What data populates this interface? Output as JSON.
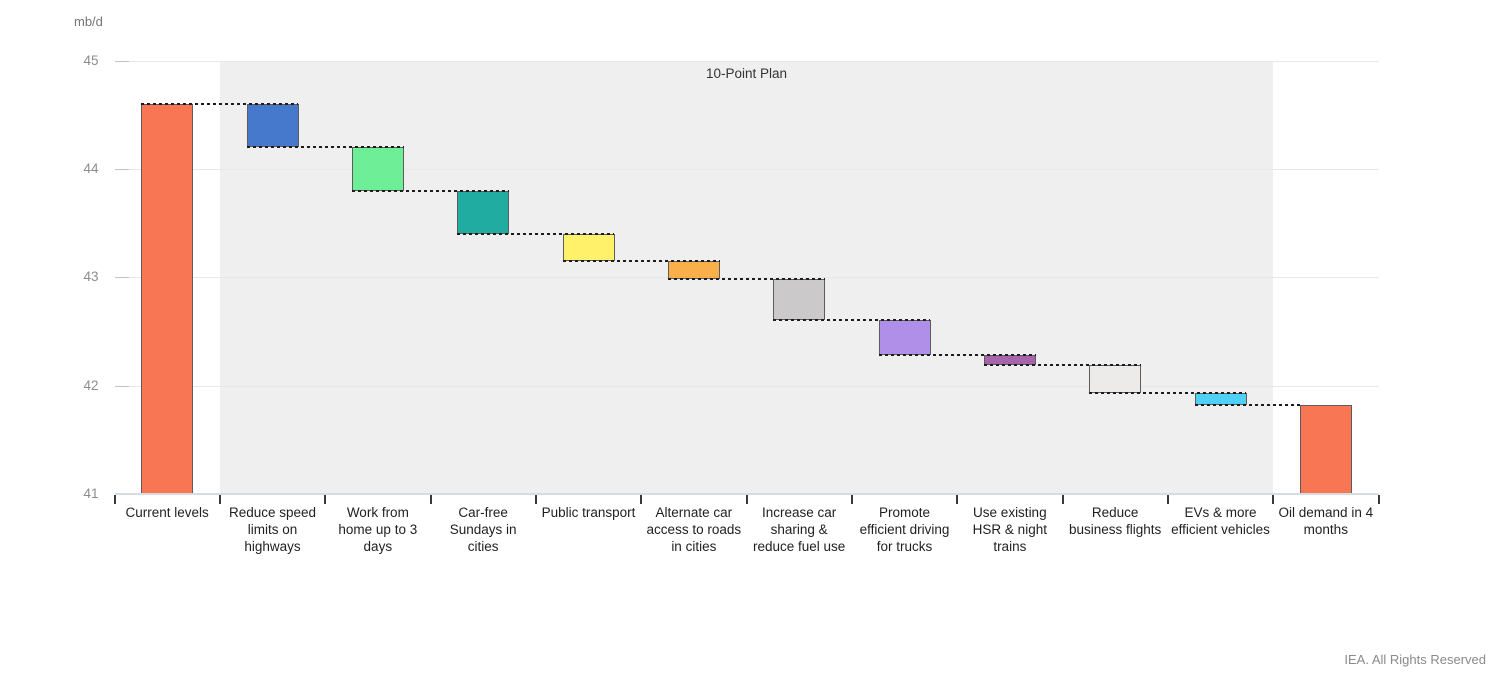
{
  "unit_label": "mb/d",
  "footer": {
    "credit": "IEA. All Rights Reserved"
  },
  "chart_data": {
    "type": "bar",
    "subtype": "waterfall",
    "title": "10-Point Plan",
    "ylabel": "mb/d",
    "ylim": [
      41,
      45
    ],
    "yticks": [
      45,
      44,
      43,
      42,
      41
    ],
    "grid": true,
    "legend": "none",
    "band": {
      "label": "10-Point Plan",
      "from_category_index": 1,
      "to_category_index": 10,
      "color": "#F0EFEF"
    },
    "start": {
      "label": "Current levels",
      "value": 44.6
    },
    "end": {
      "label": "Oil demand in 4 months",
      "value": 41.82
    },
    "total_reduction_mb_d": 2.78,
    "bars": [
      {
        "label": "Current levels",
        "role": "total",
        "from": 41,
        "to": 44.6,
        "delta": null,
        "color": "#F97655"
      },
      {
        "label": "Reduce speed limits on highways",
        "role": "decrease",
        "from": 44.6,
        "to": 44.2,
        "delta": -0.4,
        "color": "#4679CC"
      },
      {
        "label": "Work from home up to 3 days",
        "role": "decrease",
        "from": 44.2,
        "to": 43.8,
        "delta": -0.4,
        "color": "#6EEF97"
      },
      {
        "label": "Car-free Sundays in cities",
        "role": "decrease",
        "from": 43.8,
        "to": 43.4,
        "delta": -0.4,
        "color": "#20ACA0"
      },
      {
        "label": "Public transport",
        "role": "decrease",
        "from": 43.4,
        "to": 43.15,
        "delta": -0.25,
        "color": "#FFF169"
      },
      {
        "label": "Alternate car access to roads in cities",
        "role": "decrease",
        "from": 43.15,
        "to": 42.98,
        "delta": -0.17,
        "color": "#F9B04A"
      },
      {
        "label": "Increase car sharing & reduce fuel use",
        "role": "decrease",
        "from": 42.98,
        "to": 42.61,
        "delta": -0.37,
        "color": "#CBC9C9"
      },
      {
        "label": "Promote efficient driving for trucks",
        "role": "decrease",
        "from": 42.61,
        "to": 42.28,
        "delta": -0.33,
        "color": "#B08FE8"
      },
      {
        "label": "Use existing HSR & night trains",
        "role": "decrease",
        "from": 42.28,
        "to": 42.19,
        "delta": -0.09,
        "color": "#A763AC"
      },
      {
        "label": "Reduce business flights",
        "role": "decrease",
        "from": 42.19,
        "to": 41.93,
        "delta": -0.26,
        "color": "#EDEBE9",
        "pattern": "dots"
      },
      {
        "label": "EVs & more efficient vehicles",
        "role": "decrease",
        "from": 41.93,
        "to": 41.82,
        "delta": -0.11,
        "color": "#4ED0F7"
      },
      {
        "label": "Oil demand in 4 months",
        "role": "total",
        "from": 41,
        "to": 41.82,
        "delta": null,
        "color": "#F97655"
      }
    ]
  }
}
